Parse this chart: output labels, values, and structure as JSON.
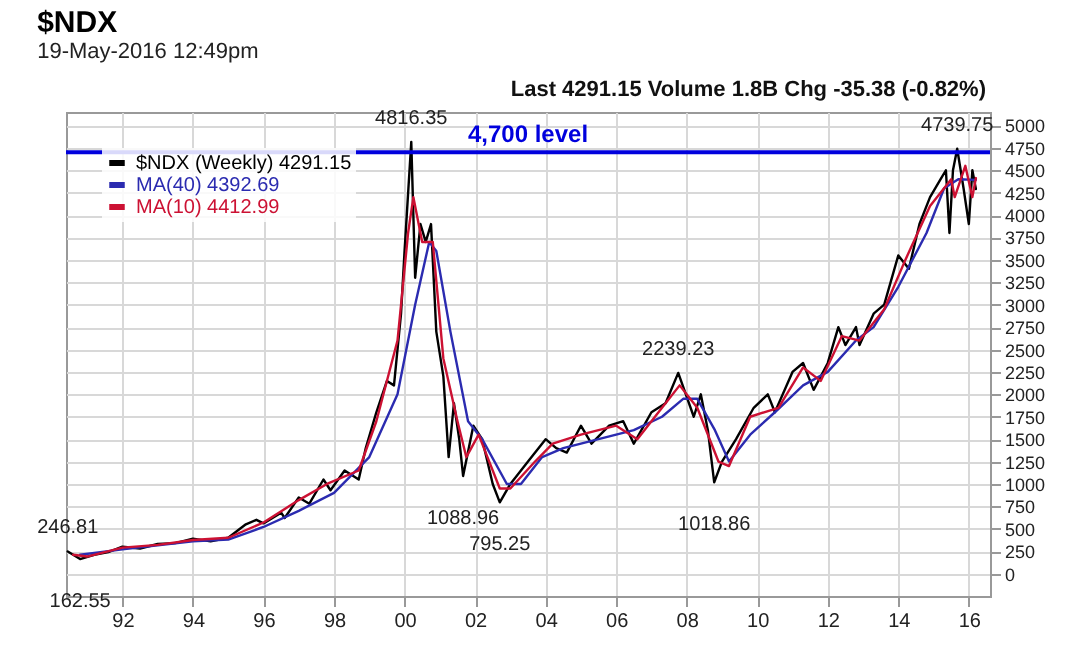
{
  "chart_data": {
    "type": "line",
    "title": "$NDX",
    "subtitle": "19-May-2016 12:49pm",
    "xlim": [
      1990.4,
      2016.6
    ],
    "ylim": [
      -250,
      5150
    ],
    "xticks": [
      {
        "value": 1992,
        "label": "92"
      },
      {
        "value": 1994,
        "label": "94"
      },
      {
        "value": 1996,
        "label": "96"
      },
      {
        "value": 1998,
        "label": "98"
      },
      {
        "value": 2000,
        "label": "00"
      },
      {
        "value": 2002,
        "label": "02"
      },
      {
        "value": 2004,
        "label": "04"
      },
      {
        "value": 2006,
        "label": "06"
      },
      {
        "value": 2008,
        "label": "08"
      },
      {
        "value": 2010,
        "label": "10"
      },
      {
        "value": 2012,
        "label": "12"
      },
      {
        "value": 2014,
        "label": "14"
      },
      {
        "value": 2016,
        "label": "16"
      }
    ],
    "yticks": [
      0,
      250,
      500,
      750,
      1000,
      1250,
      1500,
      1750,
      2000,
      2250,
      2500,
      2750,
      3000,
      3250,
      3500,
      3750,
      4000,
      4250,
      4500,
      4750,
      5000
    ],
    "grid": true,
    "legend": "top left",
    "marker": "none",
    "line_style": "solid",
    "series": [
      {
        "name": "$NDX (Weekly) 4291.15",
        "color": "#000000",
        "x": [
          1990.45,
          1990.8,
          1991.2,
          1991.6,
          1992.0,
          1992.5,
          1993.0,
          1993.5,
          1994.0,
          1994.5,
          1995.0,
          1995.5,
          1995.8,
          1996.0,
          1996.5,
          1996.6,
          1997.0,
          1997.3,
          1997.7,
          1997.9,
          1998.3,
          1998.7,
          1998.9,
          1999.2,
          1999.5,
          1999.7,
          1999.9,
          2000.0,
          2000.19,
          2000.3,
          2000.45,
          2000.6,
          2000.75,
          2000.9,
          2001.1,
          2001.25,
          2001.4,
          2001.55,
          2001.66,
          2001.95,
          2002.2,
          2002.5,
          2002.7,
          2003.0,
          2003.5,
          2004.0,
          2004.3,
          2004.6,
          2005.0,
          2005.3,
          2005.8,
          2006.2,
          2006.5,
          2007.0,
          2007.4,
          2007.76,
          2008.2,
          2008.4,
          2008.6,
          2008.78,
          2009.0,
          2009.4,
          2009.9,
          2010.3,
          2010.5,
          2011.0,
          2011.3,
          2011.6,
          2012.0,
          2012.3,
          2012.5,
          2012.8,
          2012.9,
          2013.3,
          2013.6,
          2014.0,
          2014.3,
          2014.6,
          2014.9,
          2015.2,
          2015.35,
          2015.45,
          2015.55,
          2015.67,
          2015.85,
          2016.0,
          2016.1,
          2016.2
        ],
        "values": [
          246.81,
          162.55,
          210,
          240,
          300,
          280,
          330,
          340,
          390,
          360,
          400,
          550,
          600,
          560,
          680,
          620,
          850,
          780,
          1050,
          930,
          1150,
          1050,
          1400,
          1800,
          2150,
          2100,
          2900,
          3600,
          4816.35,
          3300,
          3900,
          3700,
          3900,
          2700,
          2200,
          1300,
          1900,
          1500,
          1088.96,
          1650,
          1500,
          1000,
          795.25,
          1000,
          1250,
          1500,
          1400,
          1350,
          1650,
          1450,
          1650,
          1700,
          1450,
          1800,
          1900,
          2239.23,
          1750,
          2000,
          1600,
          1018.86,
          1250,
          1500,
          1850,
          2000,
          1800,
          2250,
          2350,
          2050,
          2350,
          2750,
          2550,
          2750,
          2550,
          2900,
          3000,
          3550,
          3400,
          3900,
          4200,
          4400,
          4500,
          3800,
          4500,
          4739.75,
          4300,
          3900,
          4500,
          4291.15
        ]
      },
      {
        "name": "MA(40) 4392.69",
        "color": "#2b2bb0",
        "x": [
          1990.8,
          1992,
          1994,
          1995,
          1996,
          1997,
          1998,
          1999,
          1999.8,
          2000.3,
          2000.7,
          2000.9,
          2001.3,
          2001.8,
          2002.2,
          2002.9,
          2003.3,
          2003.9,
          2004.5,
          2005.5,
          2006.5,
          2007.3,
          2007.9,
          2008.3,
          2008.8,
          2009.2,
          2009.8,
          2010.5,
          2011.3,
          2012,
          2012.8,
          2013.3,
          2014,
          2014.8,
          2015.3,
          2015.7,
          2016.2
        ],
        "values": [
          210,
          270,
          360,
          380,
          520,
          700,
          900,
          1300,
          2000,
          3000,
          3700,
          3600,
          2700,
          1700,
          1500,
          1000,
          1000,
          1300,
          1400,
          1500,
          1600,
          1750,
          1950,
          1950,
          1600,
          1250,
          1550,
          1800,
          2100,
          2250,
          2600,
          2750,
          3200,
          3800,
          4300,
          4400,
          4392.69
        ]
      },
      {
        "name": "MA(10) 4412.99",
        "color": "#cc1133",
        "x": [
          1990.6,
          1991,
          1992,
          1993,
          1994,
          1995,
          1996,
          1997,
          1997.8,
          1998.7,
          1999.2,
          1999.8,
          2000.1,
          2000.25,
          2000.5,
          2000.8,
          2001.1,
          2001.5,
          2001.75,
          2002.1,
          2002.7,
          2003.0,
          2003.7,
          2004.2,
          2005,
          2006,
          2006.6,
          2007.3,
          2007.8,
          2008.3,
          2008.9,
          2009.2,
          2009.8,
          2010.6,
          2011.3,
          2011.8,
          2012.4,
          2012.9,
          2013.6,
          2014.2,
          2014.9,
          2015.5,
          2015.6,
          2015.9,
          2016.1,
          2016.2
        ],
        "values": [
          210,
          190,
          290,
          320,
          375,
          400,
          570,
          820,
          1000,
          1150,
          1700,
          2600,
          3800,
          4200,
          3700,
          3700,
          2400,
          1700,
          1300,
          1550,
          950,
          950,
          1250,
          1450,
          1550,
          1650,
          1500,
          1850,
          2100,
          1850,
          1250,
          1200,
          1750,
          1850,
          2300,
          2150,
          2650,
          2600,
          2950,
          3500,
          4100,
          4400,
          4200,
          4550,
          4200,
          4412.99
        ]
      }
    ],
    "ref_lines": [
      {
        "axis": "y",
        "value": 4700,
        "label": "4,700 level",
        "color": "#0000dd"
      }
    ],
    "annotations": [
      "Last 4291.15  Volume 1.8B  Chg -35.38 (-0.82%)",
      {
        "text": "4816.35",
        "x": 2000.19,
        "y": 4816.35
      },
      {
        "text": "4739.75",
        "x": 2015.67,
        "y": 4739.75
      },
      {
        "text": "2239.23",
        "x": 2007.76,
        "y": 2239.23
      },
      {
        "text": "1088.96",
        "x": 2001.66,
        "y": 1088.96
      },
      {
        "text": "795.25",
        "x": 2002.7,
        "y": 795.25
      },
      {
        "text": "1018.86",
        "x": 2008.78,
        "y": 1018.86
      },
      {
        "text": "246.81",
        "x": 1990.45,
        "y": 246.81
      },
      {
        "text": "162.55",
        "x": 1990.8,
        "y": 162.55
      }
    ]
  }
}
